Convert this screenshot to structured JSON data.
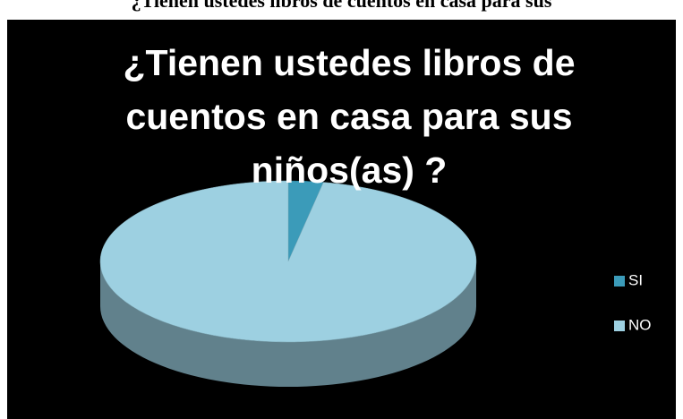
{
  "caption": "¿Tienen ustedes libros de cuentos en casa para sus",
  "chart_data": {
    "type": "pie",
    "title": "¿Tienen ustedes libros de cuentos  en casa para sus niños(as) ?",
    "categories": [
      "SI",
      "NO"
    ],
    "values": [
      3,
      97
    ],
    "colors": [
      "#3b9bb9",
      "#9dd0e1"
    ],
    "legend": "right",
    "three_d": true
  }
}
